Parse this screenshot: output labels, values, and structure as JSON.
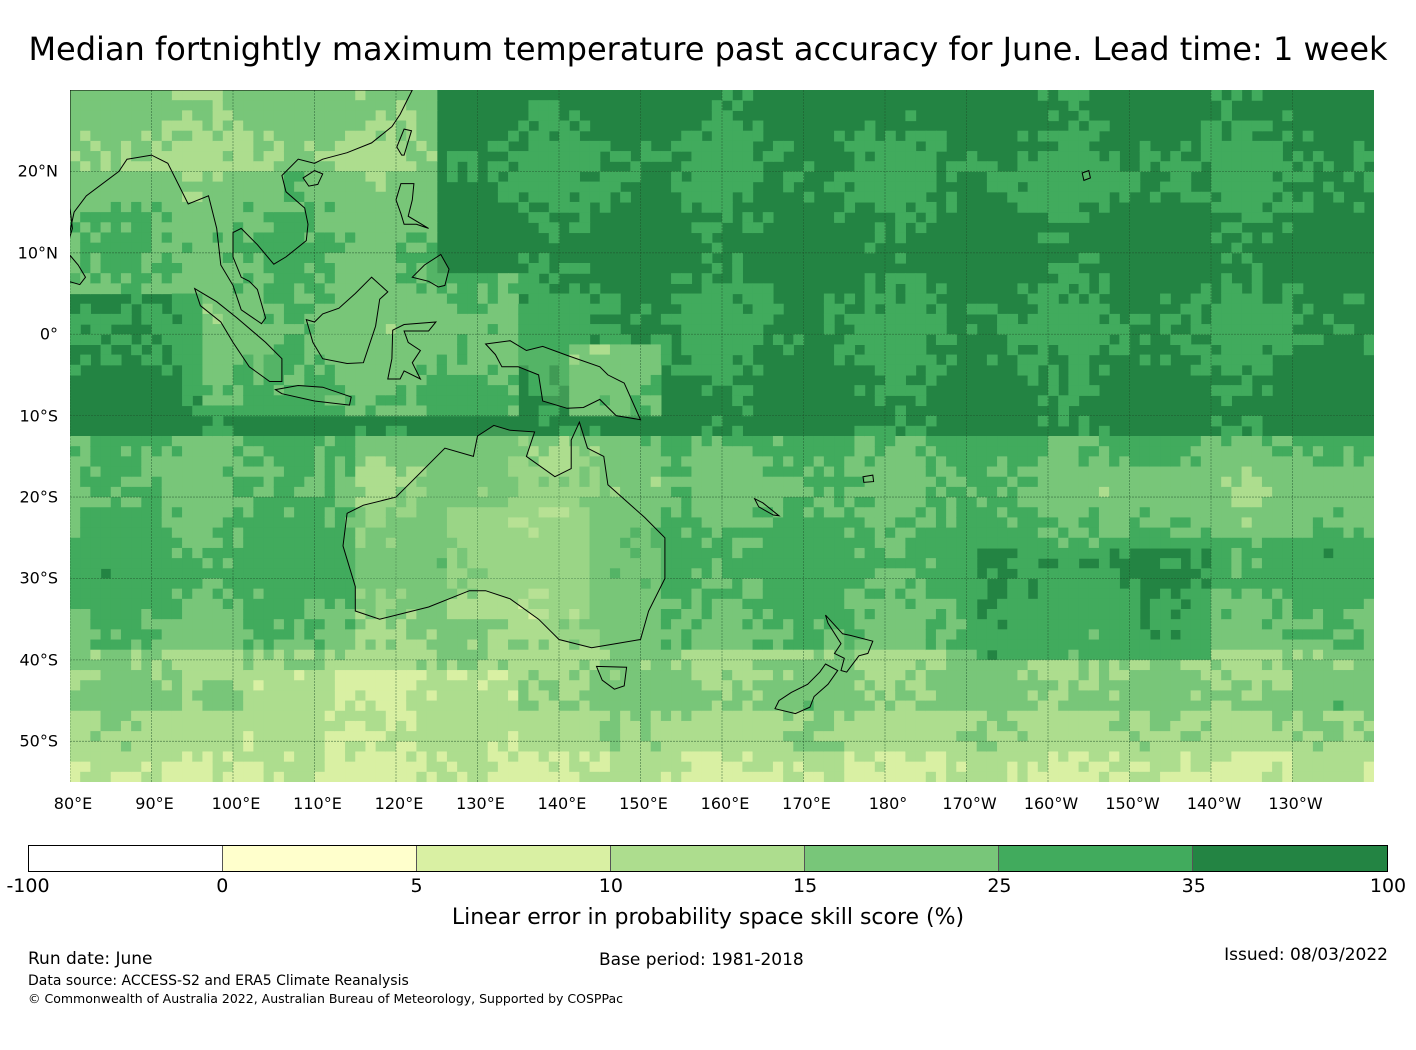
{
  "title": "Median fortnightly maximum temperature past accuracy for June. Lead time: 1 week",
  "map": {
    "lon_range": [
      80,
      240
    ],
    "lat_range": [
      -55,
      30
    ],
    "lat_labels": [
      {
        "lat": 20,
        "label": "20°N"
      },
      {
        "lat": 10,
        "label": "10°N"
      },
      {
        "lat": 0,
        "label": "0°"
      },
      {
        "lat": -10,
        "label": "10°S"
      },
      {
        "lat": -20,
        "label": "20°S"
      },
      {
        "lat": -30,
        "label": "30°S"
      },
      {
        "lat": -40,
        "label": "40°S"
      },
      {
        "lat": -50,
        "label": "50°S"
      }
    ],
    "lon_labels": [
      {
        "lon": 80,
        "label": "80°E"
      },
      {
        "lon": 90,
        "label": "90°E"
      },
      {
        "lon": 100,
        "label": "100°E"
      },
      {
        "lon": 110,
        "label": "110°E"
      },
      {
        "lon": 120,
        "label": "120°E"
      },
      {
        "lon": 130,
        "label": "130°E"
      },
      {
        "lon": 140,
        "label": "140°E"
      },
      {
        "lon": 150,
        "label": "150°E"
      },
      {
        "lon": 160,
        "label": "160°E"
      },
      {
        "lon": 170,
        "label": "170°E"
      },
      {
        "lon": 180,
        "label": "180°"
      },
      {
        "lon": 190,
        "label": "170°W"
      },
      {
        "lon": 200,
        "label": "160°W"
      },
      {
        "lon": 210,
        "label": "150°W"
      },
      {
        "lon": 220,
        "label": "140°W"
      },
      {
        "lon": 230,
        "label": "130°W"
      }
    ],
    "grid": true
  },
  "legend": {
    "title": "Linear error in probability space skill score (%)",
    "ticks": [
      "-100",
      "0",
      "5",
      "10",
      "15",
      "25",
      "35",
      "100"
    ],
    "colors": [
      "#ffffff",
      "#ffffcc",
      "#d9f0a3",
      "#addd8e",
      "#78c679",
      "#41ab5d",
      "#238443"
    ]
  },
  "footer": {
    "run_date": "Run date: June",
    "data_source": "Data source: ACCESS-S2 and ERA5 Climate Reanalysis",
    "copyright": "© Commonwealth of Australia 2022, Australian Bureau of Meteorology, Supported by COSPPac",
    "base_period": "Base period: 1981-2018",
    "issued": "Issued: 08/03/2022"
  }
}
